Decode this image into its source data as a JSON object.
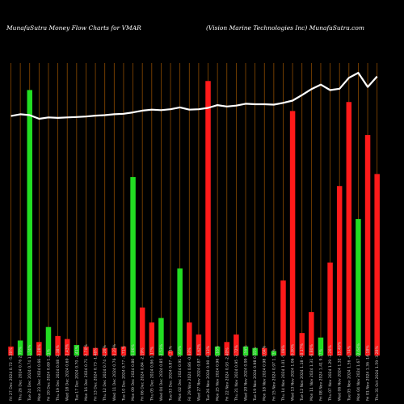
{
  "header": {
    "left": "MunafaSutra  Money Flow  Charts for VMAR",
    "right": "(Vision  Marine    Technologies Inc) MunafaSutra.com"
  },
  "colors": {
    "background": "#000000",
    "gridline": "#8b4a00",
    "up_bar": "#22dd22",
    "down_bar": "#ff1a1a",
    "price_line": "#ffffff"
  },
  "chart_data": {
    "type": "bar",
    "title": "Money Flow Charts for VMAR",
    "categories": [
      "Fri 27 Dec 2024 0.72 -5.28%",
      "Thu 26 Dec 2024 0.76 2.70%",
      "Tue 24 Dec 2024 0.74 11.74%",
      "Mon 23 Dec 2024 0.66 -3.28%",
      "Fri 20 Dec 2024 0.69 1.21%",
      "Thu 19 Dec 2024 0.68 -2.38%",
      "Wed 18 Dec 2024 0.69 -1.43%",
      "Tue 17 Dec 2024 0.70 -1.41%",
      "Mon 16 Dec 2024 0.71 -2.70%",
      "Fri 13 Dec 2024 0.73 -1.46%",
      "Thu 12 Dec 2024 0.74 -2.26%",
      "Wed 11 Dec 2024 0.76 -1.23%",
      "Tue 10 Dec 2024 0.77 -3.71%",
      "Mon 09 Dec 2024 0.80 -5.06%",
      "Fri 06 Dec 2024 0.84 -2.19%",
      "Thu 05 Dec 2024 0.86 1.17%",
      "Wed 04 Dec 2024 0.85 -2.53%",
      "Tue 03 Dec 2024 0.87 -4.31%",
      "Mon 02 Dec 2024 0.91 5.63%",
      "Fri 29 Nov 2024 0.86 -0.63%",
      "Wed 27 Nov 2024 0.87 -3.62%",
      "Tue 26 Nov 2024 0.90 -6.13%",
      "Mon 25 Nov 2024 0.96 3.16%",
      "Fri 22 Nov 2024 0.93 -2.40%",
      "Thu 21 Nov 2024 0.95 -3.72%",
      "Wed 20 Nov 2024 0.99 0.56%",
      "Tue 19 Nov 2024 0.98 0.55%",
      "Mon 18 Nov 2024 0.98 1.04%",
      "Fri 15 Nov 2024 0.97 1.73%",
      "Thu 14 Nov 2024 1.01 -5.09%",
      "Wed 13 Nov 2024 1.06 -9.80%",
      "Tue 12 Nov 2024 1.18 -10.17%",
      "Mon 11 Nov 2024 1.31 -6.80%",
      "Fri 08 Nov 2024 1.41 9.17%",
      "Thu 07 Nov 2024 1.29 -2.26%",
      "Wed 06 Nov 2024 1.32 -15.49%",
      "Tue 05 Nov 2024 1.56 -6.74%",
      "Mon 04 Nov 2024 1.67 22.64%",
      "Fri 01 Nov 2024 1.36 -14.18%",
      "Thu 31 Oct 2024 1.59 -3.28%"
    ],
    "directions": [
      "down",
      "up",
      "up",
      "down",
      "up",
      "down",
      "down",
      "up",
      "down",
      "down",
      "down",
      "down",
      "down",
      "up",
      "down",
      "down",
      "up",
      "down",
      "up",
      "down",
      "down",
      "down",
      "up",
      "down",
      "down",
      "up",
      "up",
      "down",
      "up",
      "down",
      "down",
      "down",
      "down",
      "up",
      "down",
      "down",
      "down",
      "up",
      "down",
      "down"
    ],
    "values": [
      6,
      10,
      177,
      9,
      19,
      13,
      11,
      7,
      6,
      5,
      5,
      5,
      6,
      119,
      32,
      22,
      25,
      3,
      58,
      22,
      14,
      183,
      6,
      9,
      14,
      6,
      5,
      5,
      3,
      50,
      163,
      15,
      29,
      12,
      62,
      113,
      169,
      91,
      147,
      121
    ],
    "price": [
      0.72,
      0.76,
      0.74,
      0.66,
      0.69,
      0.68,
      0.69,
      0.7,
      0.71,
      0.73,
      0.74,
      0.76,
      0.77,
      0.8,
      0.84,
      0.86,
      0.85,
      0.87,
      0.91,
      0.86,
      0.87,
      0.9,
      0.96,
      0.93,
      0.95,
      0.99,
      0.98,
      0.98,
      0.97,
      1.01,
      1.06,
      1.18,
      1.31,
      1.41,
      1.29,
      1.32,
      1.56,
      1.67,
      1.36,
      1.59
    ],
    "ylim": [
      0,
      195
    ],
    "price_ylim": [
      -5.6,
      1.76
    ],
    "grid": "vertical"
  }
}
